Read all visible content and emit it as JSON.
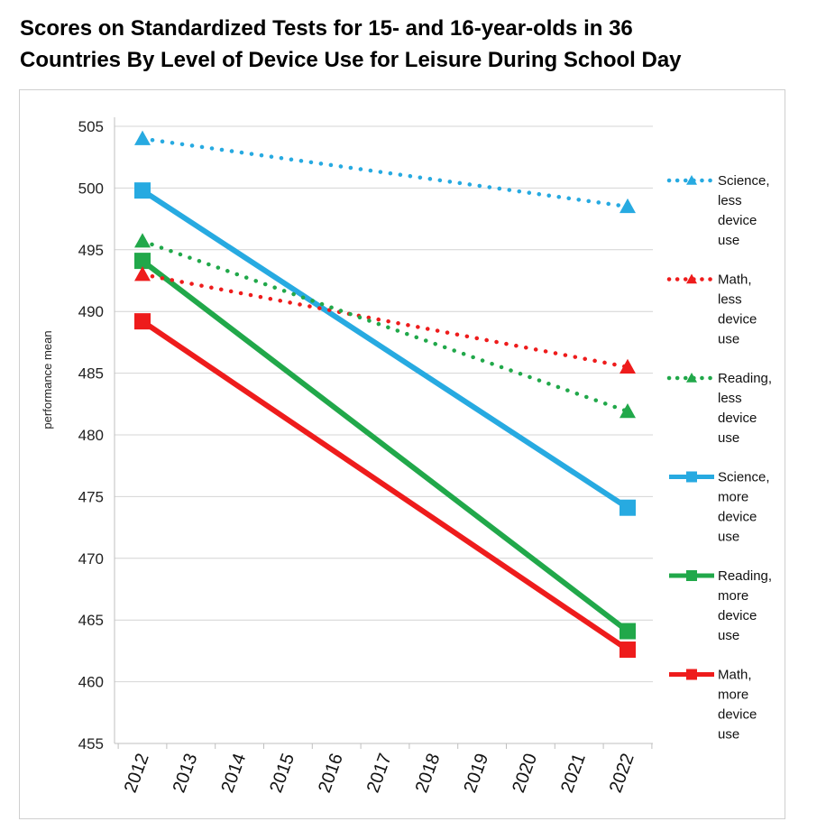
{
  "chart_data": {
    "type": "line",
    "title_lines": [
      "Scores on Standardized Tests for 15- and 16-year-olds in 36",
      "Countries By Level of Device Use for Leisure During School Day"
    ],
    "ylabel": "performance mean",
    "xlabel": "",
    "ylim": [
      455,
      505
    ],
    "y_ticks": [
      505,
      500,
      495,
      490,
      485,
      480,
      475,
      470,
      465,
      460,
      455
    ],
    "x_ticks": [
      "2012",
      "2013",
      "2014",
      "2015",
      "2016",
      "2017",
      "2018",
      "2019",
      "2020",
      "2021",
      "2022"
    ],
    "grid": "horizontal",
    "legend_position": "right",
    "series": [
      {
        "name_lines": [
          "Science,",
          "less",
          "device",
          "use"
        ],
        "color": "#27aae1",
        "dash": "dotted",
        "marker": "triangle",
        "x": [
          "2012",
          "2022"
        ],
        "values": [
          504,
          498.5
        ]
      },
      {
        "name_lines": [
          "Math,",
          "less",
          "device",
          "use"
        ],
        "color": "#ee1c1c",
        "dash": "dotted",
        "marker": "triangle",
        "x": [
          "2012",
          "2022"
        ],
        "values": [
          493,
          485.5
        ]
      },
      {
        "name_lines": [
          "Reading,",
          "less",
          "device",
          "use"
        ],
        "color": "#21a84a",
        "dash": "dotted",
        "marker": "triangle",
        "x": [
          "2012",
          "2022"
        ],
        "values": [
          495.7,
          481.9
        ]
      },
      {
        "name_lines": [
          "Science,",
          "more",
          "device",
          "use"
        ],
        "color": "#27aae1",
        "dash": "solid",
        "marker": "square",
        "x": [
          "2012",
          "2022"
        ],
        "values": [
          499.8,
          474.1
        ]
      },
      {
        "name_lines": [
          "Reading,",
          "more",
          "device",
          "use"
        ],
        "color": "#21a84a",
        "dash": "solid",
        "marker": "square",
        "x": [
          "2012",
          "2022"
        ],
        "values": [
          494.1,
          464.1
        ]
      },
      {
        "name_lines": [
          "Math,",
          "more",
          "device",
          "use"
        ],
        "color": "#ee1c1c",
        "dash": "solid",
        "marker": "square",
        "x": [
          "2012",
          "2022"
        ],
        "values": [
          489.2,
          462.6
        ]
      }
    ]
  }
}
